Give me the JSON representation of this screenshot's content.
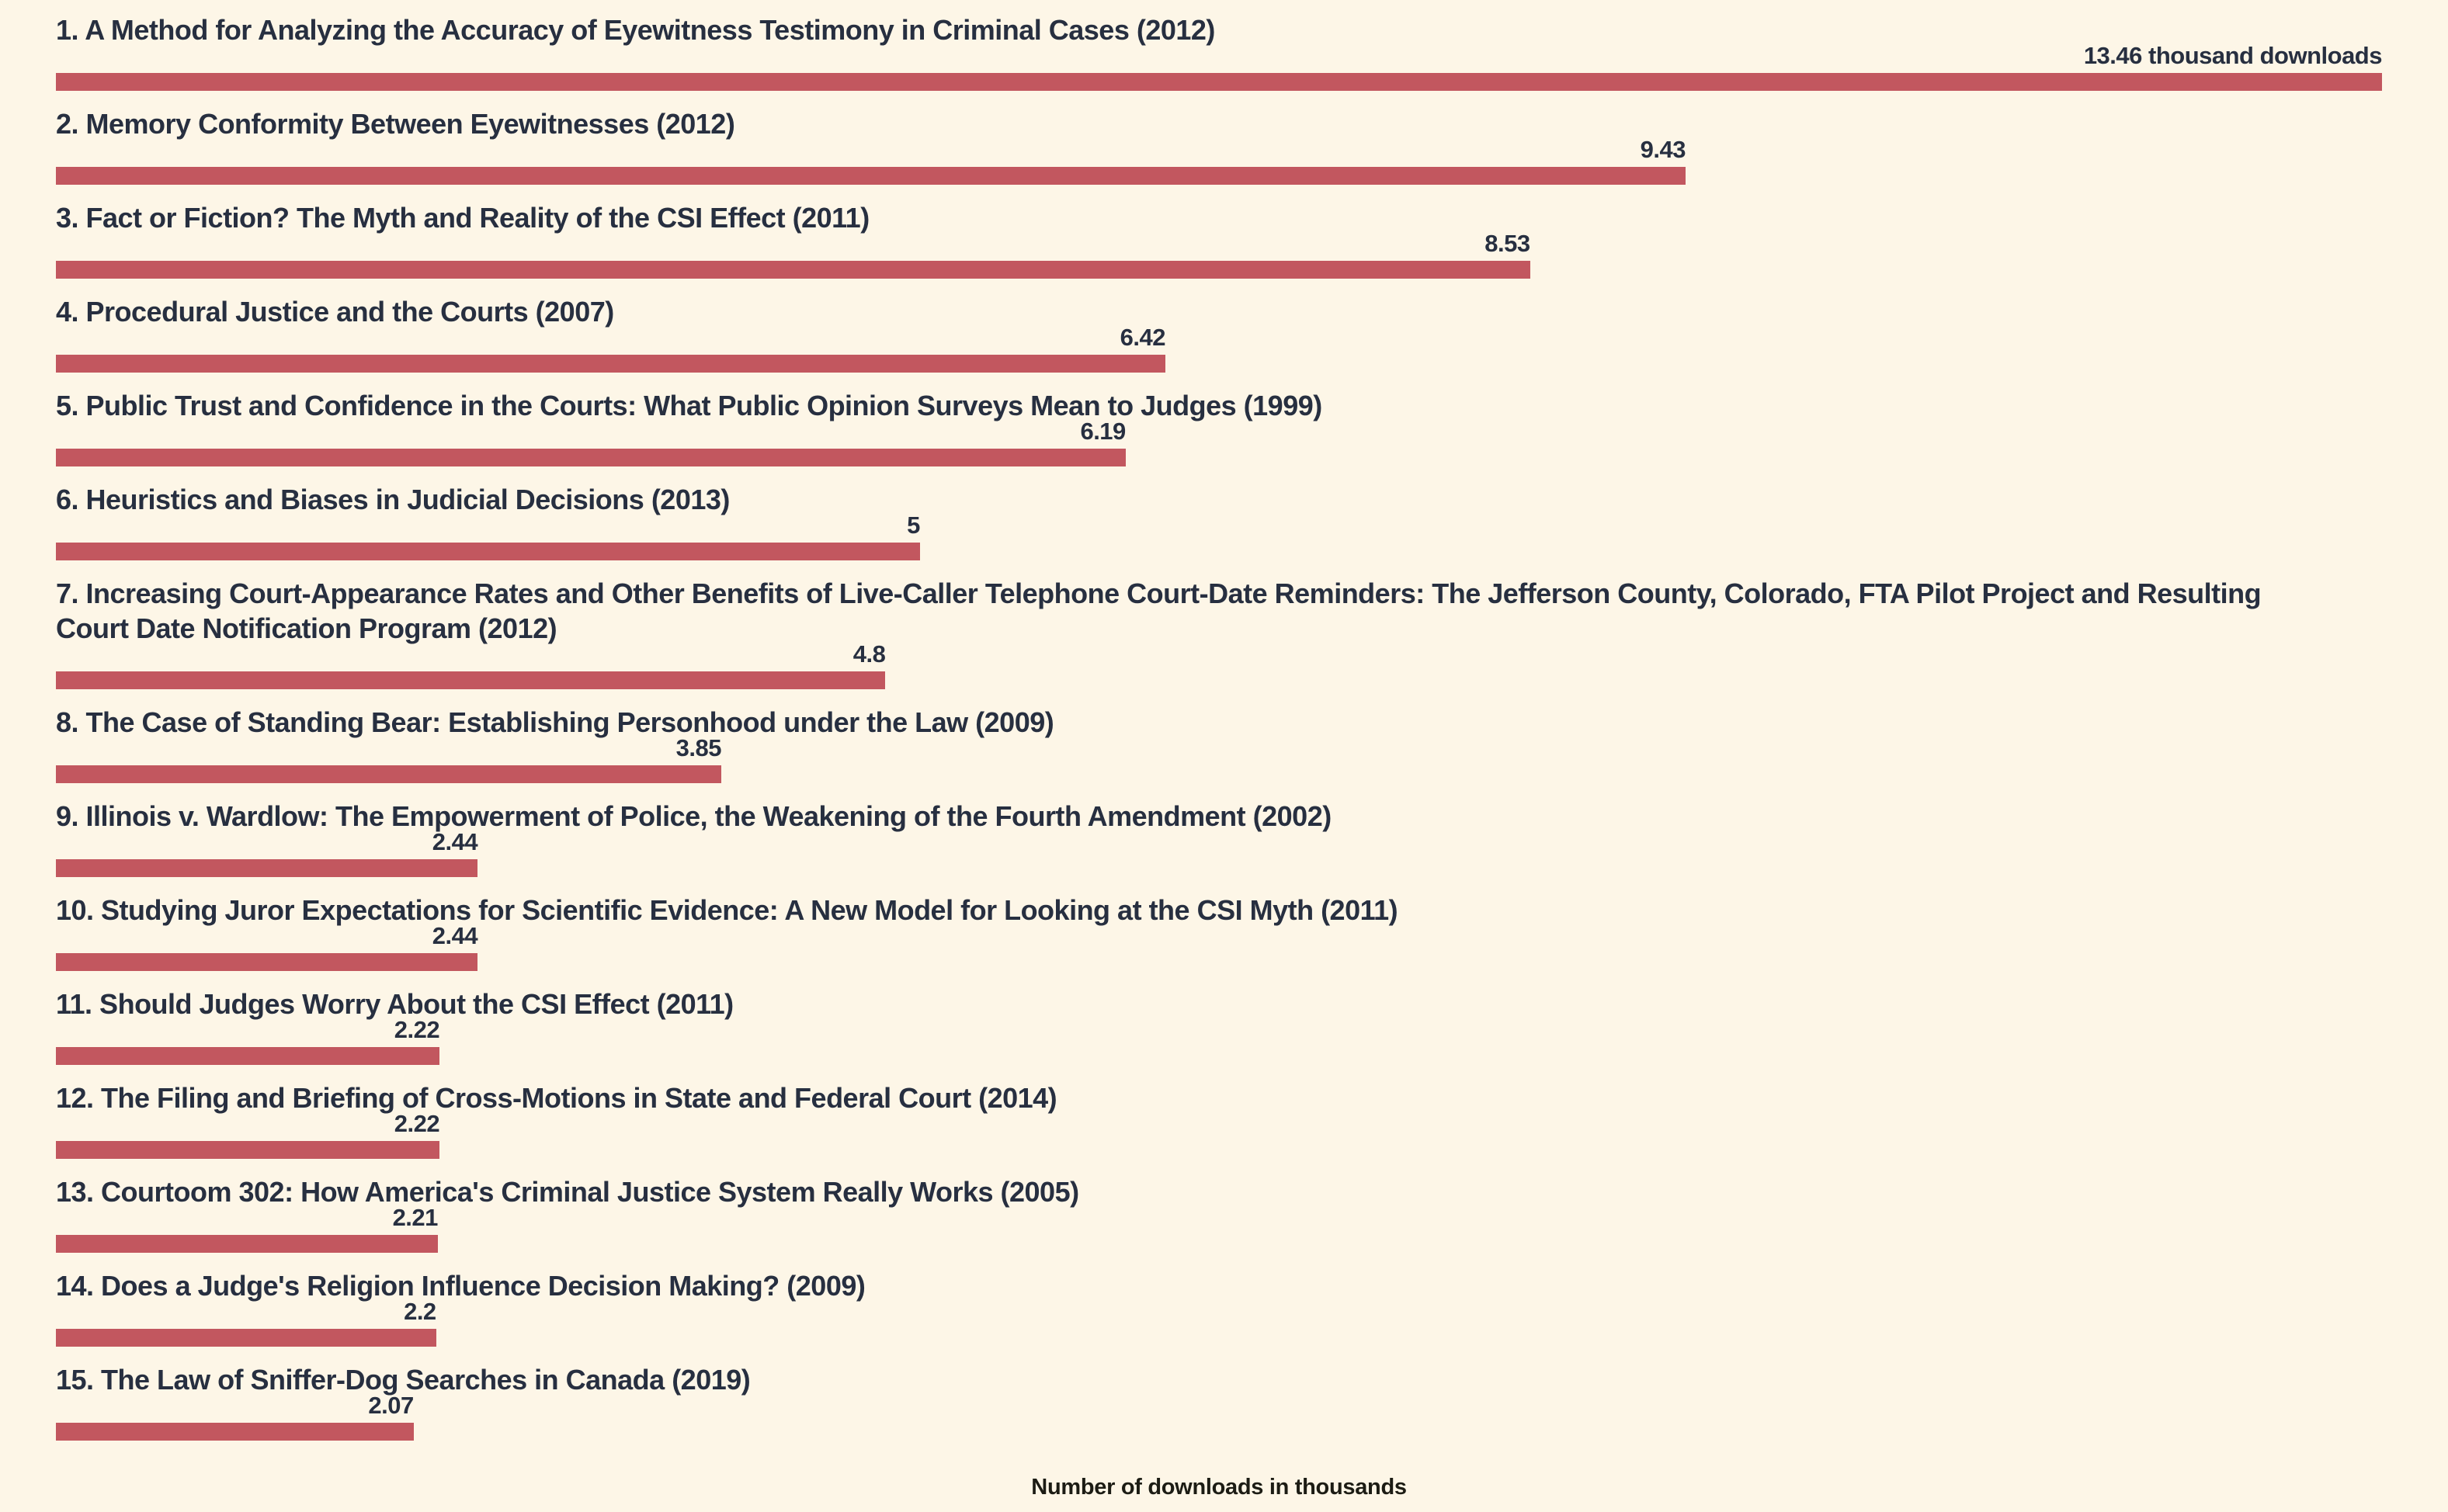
{
  "chart_data": {
    "type": "bar",
    "orientation": "horizontal",
    "xlabel": "Number of downloads in thousands",
    "xlim": [
      0,
      13.46
    ],
    "grid": false,
    "legend": "none",
    "bar_color": "#c2575f",
    "background_color": "#fdf6e7",
    "text_color": "#272f40",
    "categories": [
      "1. A Method for Analyzing the Accuracy of Eyewitness Testimony in Criminal Cases (2012)",
      "2. Memory Conformity Between Eyewitnesses (2012)",
      "3. Fact or Fiction? The Myth and Reality of the CSI Effect (2011)",
      "4. Procedural Justice and the Courts (2007)",
      "5. Public Trust and Confidence in the Courts: What Public Opinion Surveys Mean to Judges (1999)",
      "6. Heuristics and Biases in Judicial Decisions (2013)",
      "7. Increasing Court-Appearance Rates and Other Benefits of Live-Caller Telephone Court-Date Reminders: The Jefferson County, Colorado, FTA Pilot Project and Resulting Court Date Notification Program (2012)",
      "8. The Case of Standing Bear: Establishing Personhood under the Law (2009)",
      "9. Illinois v. Wardlow: The Empowerment of Police, the Weakening of the Fourth Amendment (2002)",
      "10. Studying Juror Expectations for Scientific Evidence: A New Model for Looking at the CSI Myth (2011)",
      "11. Should Judges Worry About the CSI Effect (2011)",
      "12. The Filing and Briefing of Cross-Motions in State and Federal Court (2014)",
      "13. Courtoom 302: How America's Criminal Justice System Really Works (2005)",
      "14. Does a Judge's Religion Influence Decision Making? (2009)",
      "15. The Law of Sniffer-Dog Searches in Canada (2019)"
    ],
    "values": [
      13.46,
      9.43,
      8.53,
      6.42,
      6.19,
      5,
      4.8,
      3.85,
      2.44,
      2.44,
      2.22,
      2.22,
      2.21,
      2.2,
      2.07
    ],
    "value_labels": [
      "13.46 thousand downloads",
      "9.43",
      "8.53",
      "6.42",
      "6.19",
      "5",
      "4.8",
      "3.85",
      "2.44",
      "2.44",
      "2.22",
      "2.22",
      "2.21",
      "2.2",
      "2.07"
    ]
  },
  "footer": {
    "caption": "Number of downloads in thousands"
  }
}
